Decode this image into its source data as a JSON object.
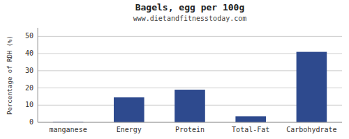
{
  "chart_data": {
    "type": "bar",
    "title": "Bagels, egg per 100g",
    "subtitle": "www.dietandfitnesstoday.com",
    "categories": [
      "manganese",
      "Energy",
      "Protein",
      "Total-Fat",
      "Carbohydrate"
    ],
    "values": [
      0.3,
      14.5,
      19.0,
      3.5,
      41.0
    ],
    "color": "#2e4a8e",
    "ylabel": "Percentage of RDH (%)",
    "ylim": [
      0,
      55
    ],
    "yticks": [
      0,
      10,
      20,
      30,
      40,
      50
    ],
    "grid": true
  }
}
